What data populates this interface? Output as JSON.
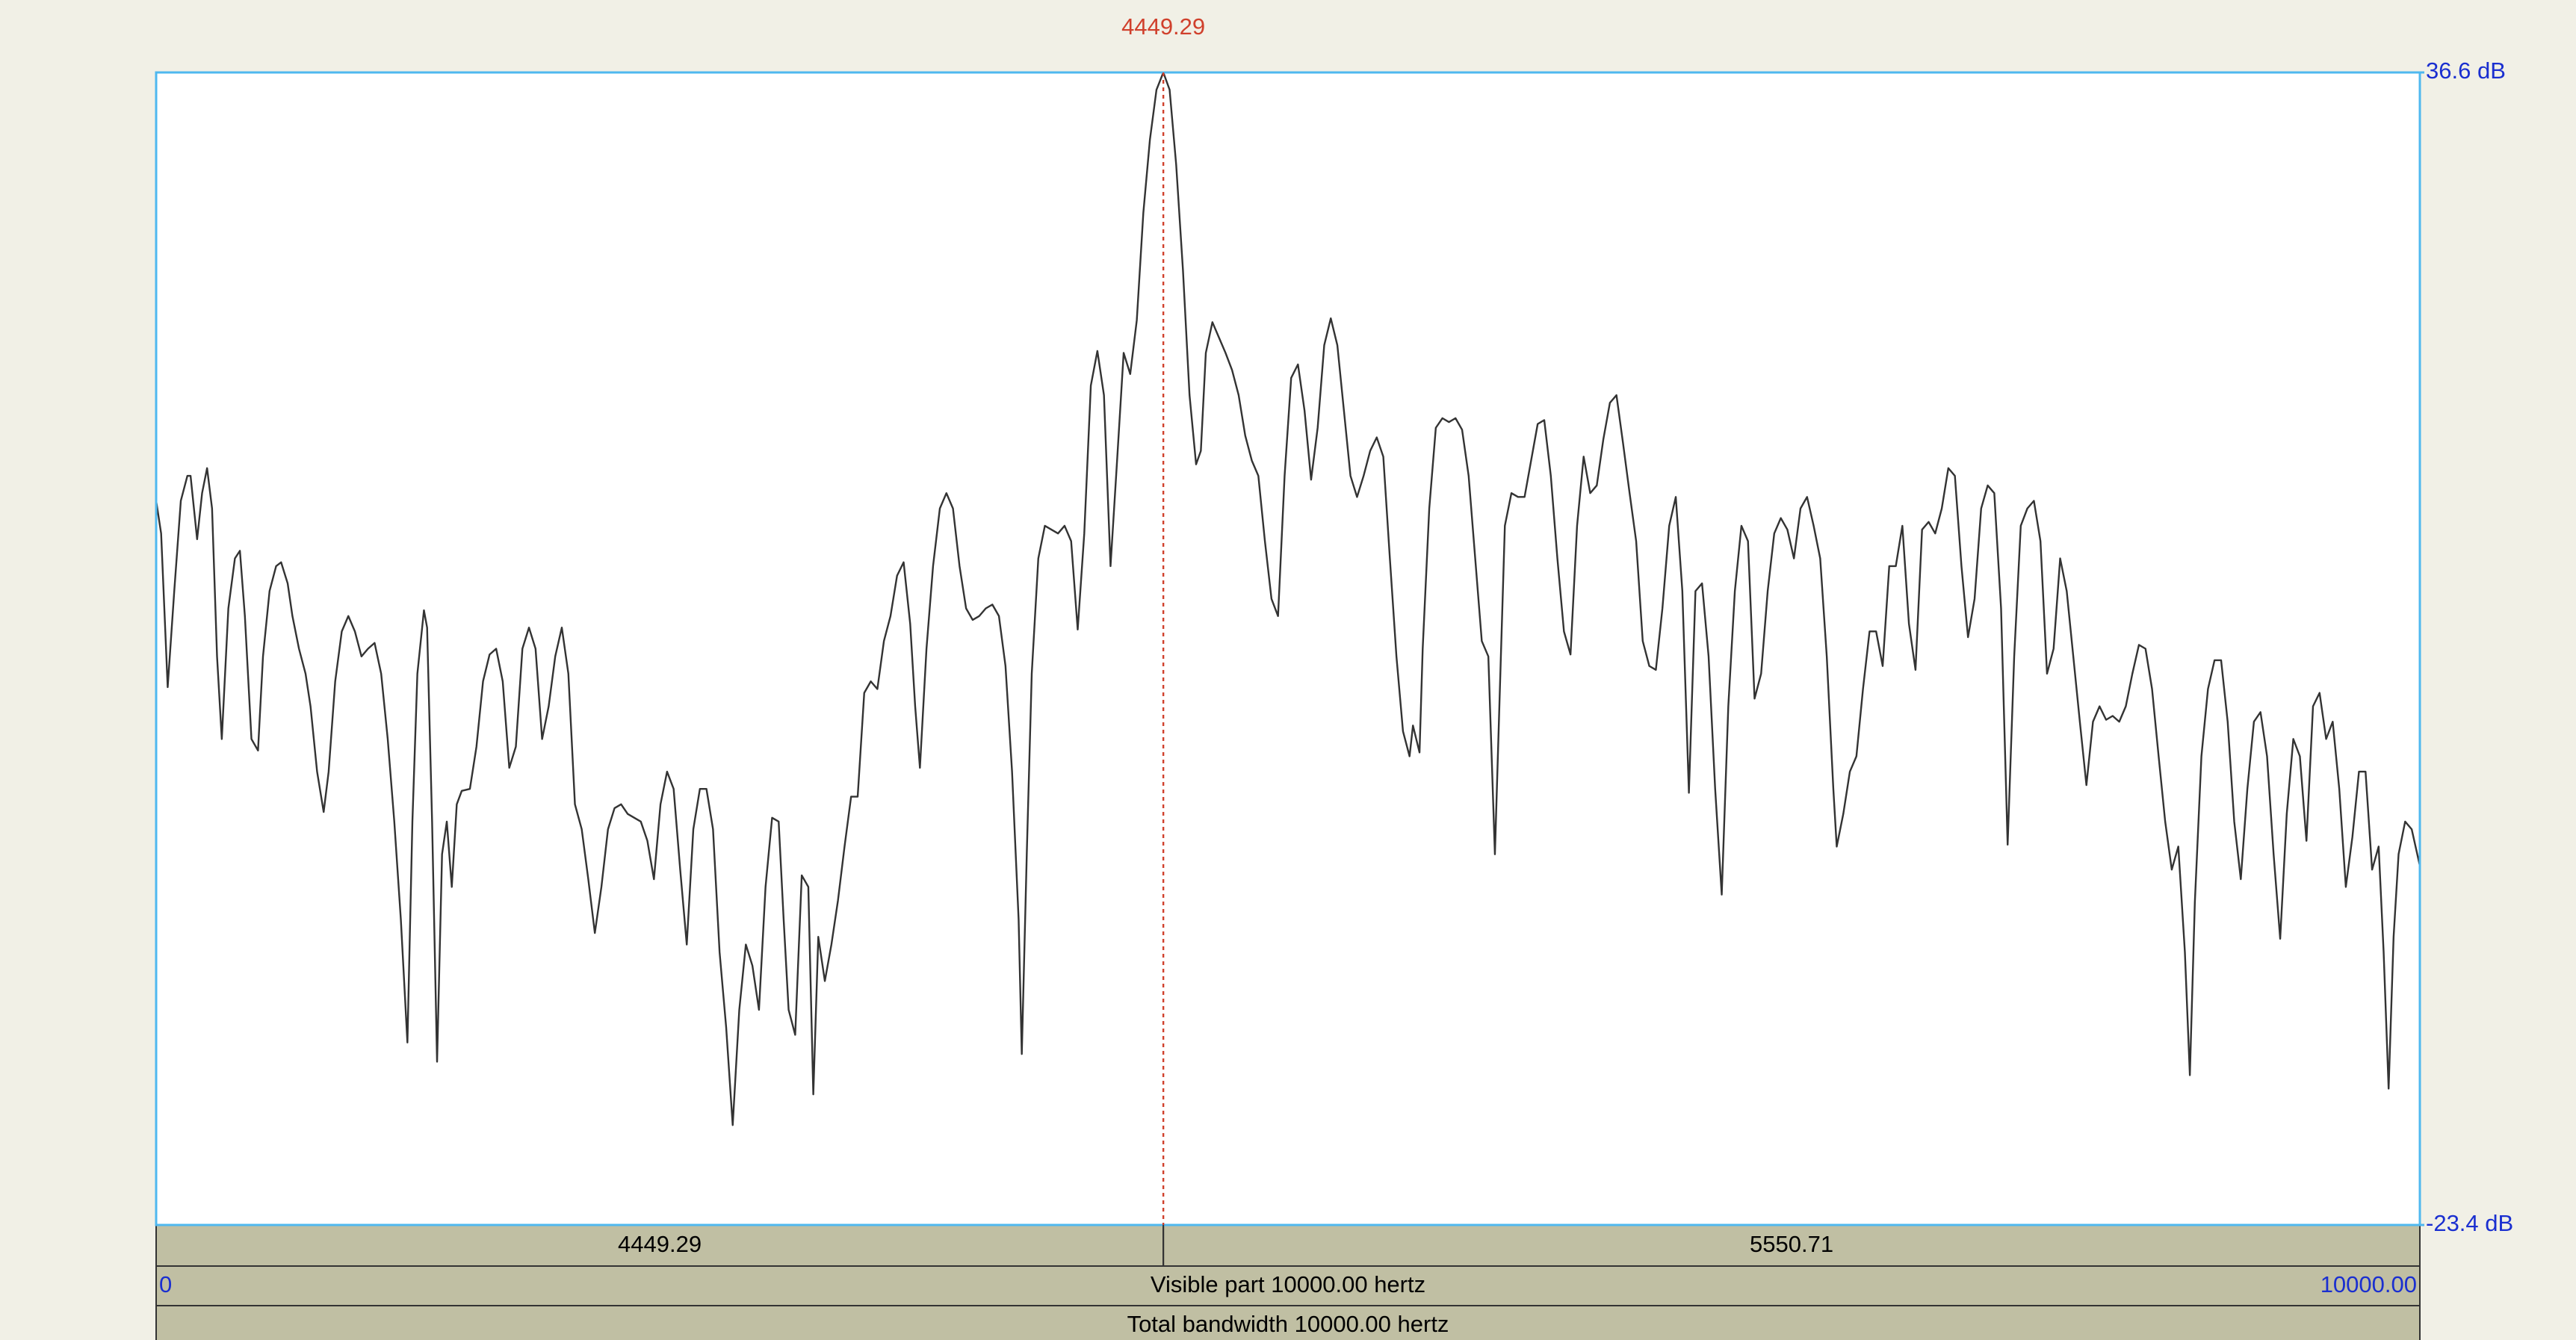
{
  "chart_data": {
    "type": "line",
    "color": "#333333",
    "cursor_color": "#d0402c",
    "axis_label_color": "#1a2fd0",
    "xlim": [
      0,
      10000
    ],
    "ylim": [
      -23.4,
      36.6
    ],
    "yticks": [
      {
        "value": 36.6,
        "label": "36.6 dB"
      },
      {
        "value": -23.4,
        "label": "-23.4 dB"
      }
    ],
    "xticks": [
      0,
      {
        "value": 10000,
        "label": "10000.00"
      }
    ],
    "cursor": 4449.29,
    "bottom_segments": [
      4449.29,
      5550.71
    ],
    "visible_part_label": "Visible part 10000.00 hertz",
    "total_bandwidth_label": "Total bandwidth 10000.00 hertz",
    "x": [
      0,
      22,
      51,
      80,
      109,
      138,
      152,
      181,
      203,
      225,
      247,
      269,
      290,
      319,
      348,
      370,
      392,
      421,
      450,
      472,
      501,
      530,
      552,
      581,
      602,
      631,
      660,
      682,
      711,
      740,
      762,
      791,
      820,
      849,
      878,
      907,
      936,
      965,
      994,
      1023,
      1052,
      1081,
      1110,
      1132,
      1154,
      1183,
      1197,
      1219,
      1241,
      1263,
      1284,
      1306,
      1328,
      1350,
      1386,
      1415,
      1444,
      1473,
      1502,
      1531,
      1560,
      1589,
      1618,
      1647,
      1676,
      1705,
      1734,
      1763,
      1792,
      1821,
      1850,
      1880,
      1909,
      1938,
      1967,
      1996,
      2025,
      2054,
      2083,
      2112,
      2141,
      2170,
      2199,
      2228,
      2257,
      2286,
      2315,
      2344,
      2373,
      2402,
      2431,
      2460,
      2489,
      2518,
      2547,
      2576,
      2605,
      2634,
      2663,
      2692,
      2721,
      2750,
      2772,
      2794,
      2823,
      2852,
      2881,
      2903,
      2925,
      2954,
      2983,
      3012,
      3041,
      3070,
      3099,
      3128,
      3157,
      3186,
      3215,
      3244,
      3273,
      3302,
      3331,
      3353,
      3374,
      3403,
      3432,
      3462,
      3491,
      3520,
      3549,
      3578,
      3607,
      3636,
      3665,
      3694,
      3723,
      3752,
      3781,
      3810,
      3824,
      3846,
      3868,
      3897,
      3926,
      3955,
      3984,
      4013,
      4042,
      4071,
      4100,
      4129,
      4158,
      4187,
      4216,
      4245,
      4274,
      4303,
      4332,
      4361,
      4390,
      4419,
      4449.29,
      4477,
      4506,
      4536,
      4565,
      4594,
      4615,
      4637,
      4666,
      4695,
      4724,
      4753,
      4782,
      4811,
      4840,
      4869,
      4898,
      4927,
      4956,
      4985,
      5014,
      5044,
      5073,
      5102,
      5131,
      5160,
      5189,
      5218,
      5247,
      5276,
      5305,
      5334,
      5363,
      5392,
      5421,
      5450,
      5479,
      5508,
      5537,
      5552,
      5581,
      5595,
      5624,
      5653,
      5682,
      5711,
      5740,
      5769,
      5798,
      5827,
      5856,
      5885,
      5914,
      5936,
      5958,
      5987,
      6016,
      6045,
      6074,
      6103,
      6132,
      6161,
      6190,
      6219,
      6248,
      6277,
      6306,
      6335,
      6364,
      6393,
      6422,
      6451,
      6480,
      6509,
      6538,
      6567,
      6596,
      6625,
      6654,
      6684,
      6713,
      6742,
      6771,
      6800,
      6829,
      6858,
      6887,
      6916,
      6945,
      6974,
      7003,
      7032,
      7061,
      7090,
      7119,
      7148,
      7177,
      7206,
      7235,
      7264,
      7293,
      7322,
      7351,
      7380,
      7409,
      7424,
      7453,
      7482,
      7511,
      7540,
      7569,
      7598,
      7627,
      7656,
      7685,
      7714,
      7743,
      7772,
      7801,
      7830,
      7859,
      7888,
      7917,
      7946,
      7975,
      8004,
      8033,
      8062,
      8091,
      8120,
      8150,
      8179,
      8208,
      8237,
      8266,
      8295,
      8324,
      8353,
      8382,
      8411,
      8440,
      8469,
      8498,
      8527,
      8556,
      8585,
      8614,
      8643,
      8672,
      8701,
      8730,
      8759,
      8788,
      8817,
      8846,
      8875,
      8904,
      8933,
      8962,
      8984,
      9006,
      9035,
      9064,
      9093,
      9122,
      9151,
      9180,
      9209,
      9238,
      9267,
      9296,
      9325,
      9354,
      9383,
      9412,
      9441,
      9470,
      9499,
      9528,
      9557,
      9586,
      9615,
      9644,
      9673,
      9702,
      9731,
      9760,
      9789,
      9818,
      9840,
      9862,
      9884,
      9906,
      9935,
      9964,
      10000
    ],
    "values": [
      14.3,
      12.6,
      4.6,
      9.6,
      14.3,
      15.6,
      15.6,
      12.3,
      14.7,
      16.0,
      13.9,
      6.2,
      1.9,
      8.7,
      11.3,
      11.7,
      8.3,
      1.9,
      1.3,
      6.2,
      9.6,
      10.9,
      11.1,
      10.0,
      8.3,
      6.6,
      5.3,
      3.6,
      0.2,
      -1.9,
      0.2,
      4.9,
      7.5,
      8.3,
      7.5,
      6.2,
      6.6,
      6.9,
      5.3,
      1.9,
      -2.4,
      -7.5,
      -13.9,
      -2.4,
      5.3,
      8.6,
      7.7,
      -2.4,
      -14.9,
      -4.1,
      -2.4,
      -5.8,
      -1.5,
      -0.8,
      -0.7,
      1.5,
      4.9,
      6.3,
      6.6,
      4.9,
      0.4,
      1.5,
      6.6,
      7.7,
      6.6,
      1.9,
      3.6,
      6.2,
      7.7,
      5.3,
      -1.5,
      -2.8,
      -5.4,
      -8.2,
      -5.8,
      -2.8,
      -1.7,
      -1.5,
      -2.0,
      -2.2,
      -2.4,
      -3.4,
      -5.4,
      -1.5,
      0.2,
      -0.7,
      -4.9,
      -8.8,
      -2.8,
      -0.7,
      -0.7,
      -2.8,
      -9.2,
      -13.1,
      -18.2,
      -12.2,
      -8.8,
      -9.9,
      -12.2,
      -5.8,
      -2.2,
      -2.4,
      -7.5,
      -12.2,
      -13.5,
      -5.2,
      -5.8,
      -16.6,
      -8.4,
      -10.7,
      -8.8,
      -6.5,
      -3.7,
      -1.1,
      -1.1,
      4.3,
      4.9,
      4.5,
      7.0,
      8.3,
      10.4,
      11.1,
      7.9,
      3.6,
      0.4,
      6.6,
      10.9,
      13.9,
      14.7,
      13.9,
      10.9,
      8.7,
      8.1,
      8.3,
      8.7,
      8.9,
      8.3,
      5.7,
      0.2,
      -7.5,
      -14.5,
      -4.1,
      5.3,
      11.3,
      13.0,
      12.8,
      12.6,
      13.0,
      12.2,
      7.6,
      12.6,
      20.3,
      22.1,
      19.8,
      10.9,
      16.4,
      22.0,
      20.9,
      23.7,
      29.3,
      33.1,
      35.7,
      36.6,
      35.7,
      31.8,
      26.3,
      19.8,
      16.2,
      16.9,
      22.0,
      23.6,
      22.8,
      22.0,
      21.1,
      19.8,
      17.7,
      16.4,
      15.6,
      12.2,
      9.2,
      8.3,
      15.6,
      20.7,
      21.4,
      19.0,
      15.4,
      18.1,
      22.4,
      23.8,
      22.4,
      19.0,
      15.6,
      14.5,
      15.6,
      16.9,
      17.6,
      16.6,
      11.3,
      6.2,
      2.3,
      1.0,
      2.6,
      1.2,
      6.6,
      13.9,
      18.1,
      18.6,
      18.4,
      18.6,
      18.0,
      15.6,
      11.3,
      7.0,
      6.2,
      -4.1,
      4.5,
      13.0,
      14.7,
      14.5,
      14.5,
      16.4,
      18.3,
      18.5,
      15.6,
      11.3,
      7.5,
      6.3,
      13.0,
      16.6,
      14.7,
      15.1,
      17.5,
      19.4,
      19.8,
      17.3,
      14.7,
      12.2,
      7.0,
      5.7,
      5.5,
      8.7,
      13.0,
      14.5,
      9.6,
      -0.9,
      9.6,
      10.0,
      6.2,
      -0.7,
      -6.2,
      3.6,
      9.6,
      13.0,
      12.2,
      4.0,
      5.3,
      9.6,
      12.6,
      13.4,
      12.8,
      11.3,
      13.9,
      14.5,
      13.0,
      11.3,
      6.2,
      -0.7,
      -3.7,
      -2.0,
      0.2,
      1.0,
      4.5,
      7.5,
      7.5,
      5.7,
      10.9,
      10.9,
      13.0,
      7.9,
      5.5,
      12.8,
      13.2,
      12.6,
      13.9,
      16.0,
      15.6,
      10.9,
      7.2,
      9.2,
      13.9,
      15.1,
      14.7,
      8.7,
      -3.6,
      6.2,
      13.0,
      13.9,
      14.3,
      12.2,
      5.3,
      6.6,
      11.3,
      9.6,
      6.2,
      2.8,
      -0.5,
      2.8,
      3.6,
      2.9,
      3.1,
      2.8,
      3.6,
      5.3,
      6.8,
      6.6,
      4.5,
      1.0,
      -2.4,
      -4.9,
      -3.7,
      -9.2,
      -15.6,
      -6.6,
      1.0,
      4.5,
      6.0,
      6.0,
      2.8,
      -2.4,
      -5.4,
      -0.7,
      2.8,
      3.3,
      1.0,
      -4.1,
      -8.5,
      -2.0,
      1.9,
      1.0,
      -3.4,
      3.6,
      4.3,
      1.9,
      2.8,
      -0.7,
      -5.8,
      -3.2,
      0.2,
      0.2,
      -4.9,
      -3.7,
      -9.2,
      -16.3,
      -8.4,
      -4.1,
      -2.4,
      -2.8,
      -4.7
    ]
  }
}
